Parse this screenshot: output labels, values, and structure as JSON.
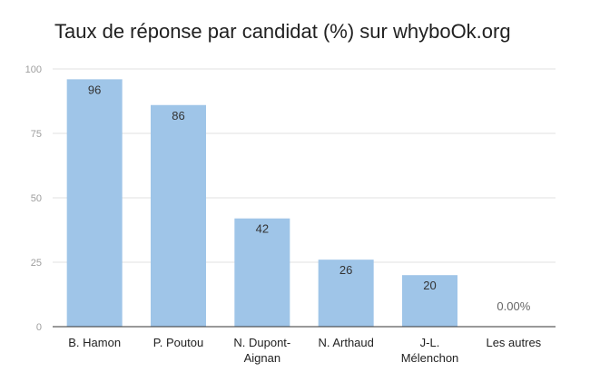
{
  "chart_data": {
    "type": "bar",
    "title": "Taux de réponse par candidat (%) sur whyboOk.org",
    "xlabel": "",
    "ylabel": "",
    "ylim": [
      0,
      100
    ],
    "yticks": [
      0,
      25,
      50,
      75,
      100
    ],
    "grid": true,
    "categories": [
      [
        "B. Hamon"
      ],
      [
        "P. Poutou"
      ],
      [
        "N. Dupont-",
        "Aignan"
      ],
      [
        "N. Arthaud"
      ],
      [
        "J-L.",
        "Mélenchon"
      ],
      [
        "Les autres"
      ]
    ],
    "values": [
      96,
      86,
      42,
      26,
      20,
      0
    ],
    "data_labels": [
      "96",
      "86",
      "42",
      "26",
      "20",
      "0.00%"
    ],
    "bar_color": "#9fc5e8"
  }
}
